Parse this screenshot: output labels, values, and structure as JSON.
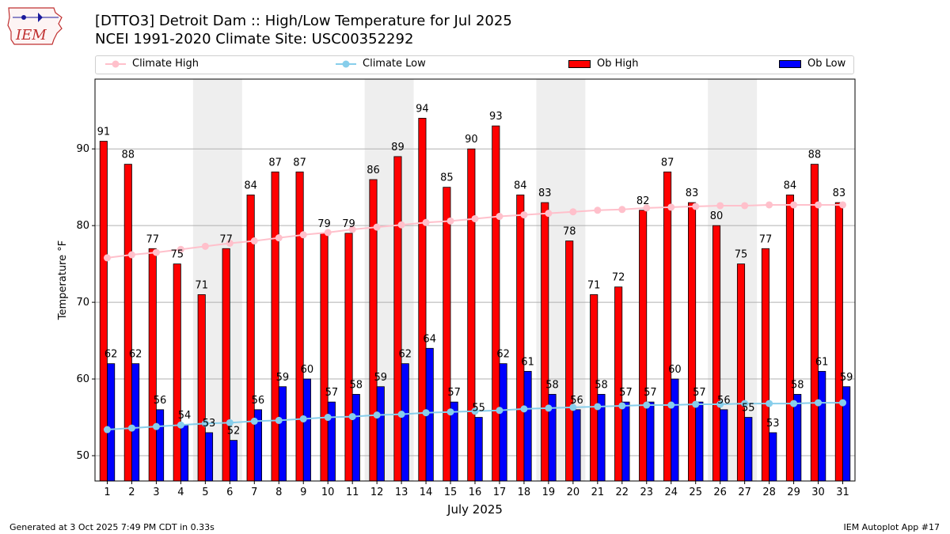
{
  "header": {
    "title_line1": "[DTTO3] Detroit Dam :: High/Low Temperature for Jul 2025",
    "title_line2": "NCEI 1991-2020 Climate Site: USC00352292",
    "logo_text": "IEM"
  },
  "legend": {
    "climate_high": "Climate High",
    "climate_low": "Climate Low",
    "ob_high": "Ob High",
    "ob_low": "Ob Low"
  },
  "footer": {
    "generated": "Generated at 3 Oct 2025 7:49 PM CDT in 0.33s",
    "app": "IEM Autoplot App #17"
  },
  "colors": {
    "ob_high": "#ff0000",
    "ob_low": "#0000ff",
    "climate_high": "#ffc0cb",
    "climate_low": "#87ceeb",
    "weekend_shade": "#eeeeee",
    "grid": "#b0b0b0"
  },
  "chart_data": {
    "type": "bar",
    "xlabel": "July 2025",
    "ylabel": "Temperature °F",
    "ylim": [
      46.7,
      99.1
    ],
    "yticks": [
      50,
      60,
      70,
      80,
      90
    ],
    "grid": "horizontal",
    "legend_position": "top",
    "categories": [
      "1",
      "2",
      "3",
      "4",
      "5",
      "6",
      "7",
      "8",
      "9",
      "10",
      "11",
      "12",
      "13",
      "14",
      "15",
      "16",
      "17",
      "18",
      "19",
      "20",
      "21",
      "22",
      "23",
      "24",
      "25",
      "26",
      "27",
      "28",
      "29",
      "30",
      "31"
    ],
    "shaded_days": [
      [
        "5",
        "6"
      ],
      [
        "12",
        "13"
      ],
      [
        "19",
        "20"
      ],
      [
        "26",
        "27"
      ]
    ],
    "series": [
      {
        "name": "Ob High",
        "kind": "bar",
        "values": [
          91,
          88,
          77,
          75,
          71,
          77,
          84,
          87,
          87,
          79,
          79,
          86,
          89,
          94,
          85,
          90,
          93,
          84,
          83,
          78,
          71,
          72,
          82,
          87,
          83,
          80,
          75,
          77,
          84,
          88,
          83
        ]
      },
      {
        "name": "Ob Low",
        "kind": "bar",
        "values": [
          62,
          62,
          56,
          54,
          53,
          52,
          56,
          59,
          60,
          57,
          58,
          59,
          62,
          64,
          57,
          55,
          62,
          61,
          58,
          56,
          58,
          57,
          57,
          60,
          57,
          56,
          55,
          53,
          58,
          61,
          59
        ]
      },
      {
        "name": "Climate High",
        "kind": "line",
        "values": [
          75.8,
          76.2,
          76.5,
          76.9,
          77.3,
          77.7,
          78.0,
          78.4,
          78.8,
          79.1,
          79.5,
          79.8,
          80.1,
          80.4,
          80.6,
          80.9,
          81.2,
          81.4,
          81.6,
          81.8,
          82.0,
          82.1,
          82.3,
          82.4,
          82.5,
          82.6,
          82.6,
          82.7,
          82.7,
          82.7,
          82.7
        ]
      },
      {
        "name": "Climate Low",
        "kind": "line",
        "values": [
          53.4,
          53.6,
          53.8,
          54.0,
          54.2,
          54.3,
          54.5,
          54.6,
          54.8,
          55.0,
          55.1,
          55.3,
          55.4,
          55.6,
          55.7,
          55.8,
          55.9,
          56.1,
          56.2,
          56.3,
          56.4,
          56.5,
          56.6,
          56.6,
          56.7,
          56.7,
          56.8,
          56.8,
          56.8,
          56.9,
          56.9
        ]
      }
    ]
  }
}
